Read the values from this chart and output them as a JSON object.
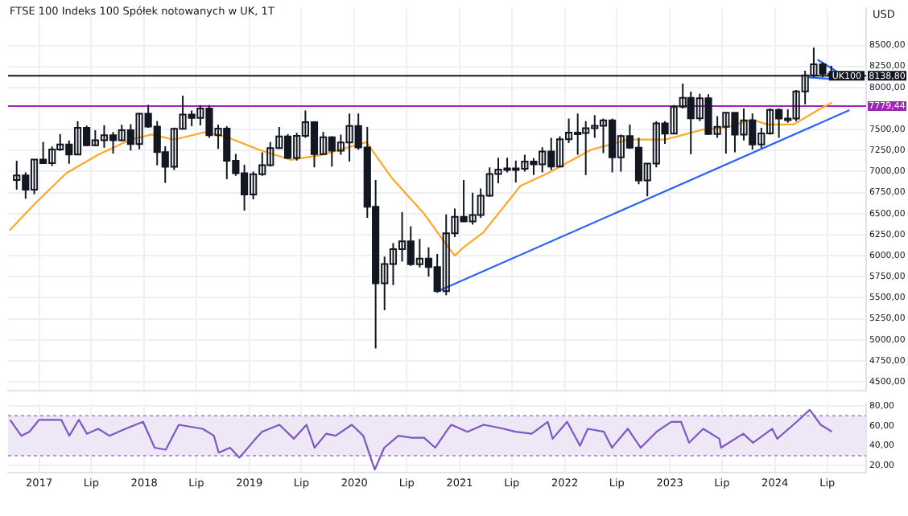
{
  "chart_data": [
    {
      "type": "candlestick",
      "title": "FTSE 100 Indeks 100 Spółek notowanych w UK, 1T",
      "ylabel": "USD",
      "color": "#131722",
      "x": [
        "2016-10-15",
        "2016-11-15",
        "2016-12-15",
        "2017-01-15",
        "2017-02-15",
        "2017-03-15",
        "2017-04-15",
        "2017-05-15",
        "2017-06-15",
        "2017-07-15",
        "2017-08-15",
        "2017-09-15",
        "2017-10-15",
        "2017-11-15",
        "2017-12-15",
        "2018-01-15",
        "2018-02-15",
        "2018-03-15",
        "2018-04-15",
        "2018-05-15",
        "2018-06-15",
        "2018-07-15",
        "2018-08-15",
        "2018-09-15",
        "2018-10-15",
        "2018-11-15",
        "2018-12-15",
        "2019-01-15",
        "2019-02-15",
        "2019-03-15",
        "2019-04-15",
        "2019-05-15",
        "2019-06-15",
        "2019-07-15",
        "2019-08-15",
        "2019-09-15",
        "2019-10-15",
        "2019-11-15",
        "2019-12-15",
        "2020-01-15",
        "2020-02-15",
        "2020-03-15",
        "2020-04-15",
        "2020-05-15",
        "2020-06-15",
        "2020-07-15",
        "2020-08-15",
        "2020-09-15",
        "2020-10-15",
        "2020-11-15",
        "2020-12-15",
        "2021-01-15",
        "2021-02-15",
        "2021-03-15",
        "2021-04-15",
        "2021-05-15",
        "2021-06-15",
        "2021-07-15",
        "2021-08-15",
        "2021-09-15",
        "2021-10-15",
        "2021-11-15",
        "2021-12-15",
        "2022-01-15",
        "2022-02-15",
        "2022-03-15",
        "2022-04-15",
        "2022-05-15",
        "2022-06-15",
        "2022-07-15",
        "2022-08-15",
        "2022-09-15",
        "2022-10-15",
        "2022-11-15",
        "2022-12-15",
        "2023-01-15",
        "2023-02-15",
        "2023-03-15",
        "2023-04-15",
        "2023-05-15",
        "2023-06-15",
        "2023-07-15",
        "2023-08-15",
        "2023-09-15",
        "2023-10-15",
        "2023-11-15",
        "2023-12-15",
        "2024-01-15",
        "2024-02-15",
        "2024-03-15",
        "2024-04-15",
        "2024-05-15",
        "2024-06-15",
        "2024-07-15"
      ],
      "ohlc": [
        [
          6899,
          7129,
          6785,
          6954
        ],
        [
          6954,
          6990,
          6676,
          6784
        ],
        [
          6784,
          7142,
          6730,
          7142
        ],
        [
          7142,
          7354,
          7090,
          7099
        ],
        [
          7099,
          7299,
          7067,
          7263
        ],
        [
          7263,
          7447,
          7245,
          7323
        ],
        [
          7323,
          7369,
          7093,
          7204
        ],
        [
          7204,
          7599,
          7200,
          7520
        ],
        [
          7520,
          7548,
          7302,
          7313
        ],
        [
          7313,
          7491,
          7304,
          7372
        ],
        [
          7372,
          7551,
          7285,
          7431
        ],
        [
          7431,
          7470,
          7215,
          7373
        ],
        [
          7373,
          7556,
          7361,
          7493
        ],
        [
          7493,
          7563,
          7250,
          7327
        ],
        [
          7327,
          7697,
          7265,
          7688
        ],
        [
          7688,
          7792,
          7520,
          7534
        ],
        [
          7534,
          7600,
          7074,
          7232
        ],
        [
          7232,
          7300,
          6867,
          7057
        ],
        [
          7057,
          7523,
          7020,
          7509
        ],
        [
          7509,
          7903,
          7500,
          7678
        ],
        [
          7678,
          7727,
          7540,
          7637
        ],
        [
          7637,
          7790,
          7550,
          7749
        ],
        [
          7749,
          7791,
          7400,
          7432
        ],
        [
          7432,
          7560,
          7270,
          7510
        ],
        [
          7510,
          7540,
          6910,
          7128
        ],
        [
          7128,
          7210,
          6950,
          6980
        ],
        [
          6980,
          7080,
          6536,
          6728
        ],
        [
          6728,
          7000,
          6670,
          6969
        ],
        [
          6969,
          7230,
          6950,
          7075
        ],
        [
          7075,
          7350,
          7060,
          7279
        ],
        [
          7279,
          7530,
          7270,
          7418
        ],
        [
          7418,
          7445,
          7150,
          7162
        ],
        [
          7162,
          7460,
          7130,
          7426
        ],
        [
          7426,
          7727,
          7400,
          7587
        ],
        [
          7587,
          7600,
          7050,
          7207
        ],
        [
          7207,
          7470,
          7200,
          7408
        ],
        [
          7408,
          7420,
          7060,
          7248
        ],
        [
          7248,
          7440,
          7200,
          7347
        ],
        [
          7347,
          7690,
          7120,
          7542
        ],
        [
          7542,
          7690,
          7260,
          7286
        ],
        [
          7286,
          7530,
          6450,
          6581
        ],
        [
          6581,
          6900,
          4898,
          5672
        ],
        [
          5672,
          5990,
          5350,
          5901
        ],
        [
          5901,
          6150,
          5650,
          6077
        ],
        [
          6077,
          6520,
          5930,
          6170
        ],
        [
          6170,
          6350,
          5880,
          5898
        ],
        [
          5898,
          6200,
          5860,
          5964
        ],
        [
          5964,
          6100,
          5750,
          5866
        ],
        [
          5866,
          6020,
          5560,
          5577
        ],
        [
          5577,
          6490,
          5530,
          6266
        ],
        [
          6266,
          6560,
          6220,
          6461
        ],
        [
          6461,
          6900,
          6400,
          6407
        ],
        [
          6407,
          6750,
          6370,
          6483
        ],
        [
          6483,
          6800,
          6450,
          6714
        ],
        [
          6714,
          7050,
          6700,
          6970
        ],
        [
          6970,
          7165,
          6860,
          7023
        ],
        [
          7023,
          7165,
          6990,
          7037
        ],
        [
          7037,
          7130,
          6870,
          7032
        ],
        [
          7032,
          7200,
          7000,
          7120
        ],
        [
          7120,
          7160,
          6960,
          7086
        ],
        [
          7086,
          7290,
          6990,
          7238
        ],
        [
          7238,
          7400,
          7020,
          7059
        ],
        [
          7059,
          7420,
          7050,
          7385
        ],
        [
          7385,
          7630,
          7340,
          7464
        ],
        [
          7464,
          7690,
          7200,
          7458
        ],
        [
          7458,
          7600,
          6960,
          7516
        ],
        [
          7516,
          7670,
          7400,
          7544
        ],
        [
          7544,
          7630,
          7220,
          7608
        ],
        [
          7608,
          7630,
          6990,
          7169
        ],
        [
          7169,
          7440,
          7000,
          7423
        ],
        [
          7423,
          7560,
          7270,
          7284
        ],
        [
          7284,
          7400,
          6850,
          6894
        ],
        [
          6894,
          7100,
          6707,
          7095
        ],
        [
          7095,
          7600,
          7050,
          7573
        ],
        [
          7573,
          7600,
          7330,
          7452
        ],
        [
          7452,
          7790,
          7450,
          7772
        ],
        [
          7772,
          8047,
          7750,
          7876
        ],
        [
          7876,
          7950,
          7206,
          7632
        ],
        [
          7632,
          7925,
          7600,
          7871
        ],
        [
          7871,
          7920,
          7440,
          7446
        ],
        [
          7446,
          7660,
          7400,
          7532
        ],
        [
          7532,
          7700,
          7215,
          7699
        ],
        [
          7699,
          7700,
          7230,
          7439
        ],
        [
          7439,
          7750,
          7370,
          7608
        ],
        [
          7608,
          7690,
          7260,
          7322
        ],
        [
          7322,
          7520,
          7280,
          7454
        ],
        [
          7454,
          7750,
          7440,
          7733
        ],
        [
          7733,
          7750,
          7400,
          7631
        ],
        [
          7631,
          7740,
          7580,
          7630
        ],
        [
          7630,
          7970,
          7600,
          7953
        ],
        [
          7953,
          8200,
          7800,
          8144
        ],
        [
          8144,
          8474,
          8120,
          8275
        ],
        [
          8275,
          8300,
          8120,
          8164
        ],
        [
          8164,
          8260,
          8110,
          8138.8
        ]
      ],
      "series": [
        {
          "type": "line",
          "color": "#ffa726",
          "x": [
            "2016-09-20",
            "2016-12-15",
            "2017-04-05",
            "2017-07-25",
            "2017-11-14",
            "2018-01-26",
            "2018-04-14",
            "2018-08-03",
            "2018-10-15",
            "2019-02-03",
            "2019-05-25",
            "2019-09-13",
            "2020-02-12",
            "2020-05-11",
            "2020-08-30",
            "2020-11-16",
            "2020-12-15",
            "2021-01-11",
            "2021-03-25",
            "2021-07-31",
            "2021-11-03",
            "2022-04-03",
            "2022-08-08",
            "2022-12-15",
            "2023-04-27",
            "2023-07-25",
            "2023-10-12",
            "2023-12-06",
            "2024-03-06",
            "2024-06-08",
            "2024-07-17"
          ],
          "values": [
            6300,
            6610,
            6980,
            7200,
            7380,
            7440,
            7380,
            7470,
            7410,
            7260,
            7140,
            7200,
            7350,
            6920,
            6500,
            6130,
            6000,
            6090,
            6280,
            6830,
            6980,
            7260,
            7380,
            7380,
            7500,
            7530,
            7620,
            7560,
            7560,
            7750,
            7820
          ]
        },
        {
          "type": "line",
          "color": "#2962ff",
          "x": [
            "2020-10-19",
            "2024-09-16"
          ],
          "values": [
            5580,
            7730
          ]
        },
        {
          "type": "line",
          "color": "#2962ff",
          "x": [
            "2024-05-28",
            "2024-08-03"
          ],
          "values": [
            8330,
            8190
          ]
        },
        {
          "type": "line",
          "color": "#2962ff",
          "x": [
            "2024-04-27",
            "2024-07-25"
          ],
          "values": [
            8120,
            8100
          ]
        }
      ],
      "xlim": [
        "2016-09-15",
        "2024-11-13"
      ],
      "xticks": [
        {
          "value": "2017",
          "label": null
        },
        {
          "value": "2017-07",
          "label": null
        },
        {
          "value": "2018",
          "label": null
        },
        {
          "value": "2018-07",
          "label": null
        },
        {
          "value": "2019",
          "label": null
        },
        {
          "value": "2019-07",
          "label": null
        },
        {
          "value": "2020",
          "label": null
        },
        {
          "value": "2020-07",
          "label": null
        },
        {
          "value": "2021",
          "label": null
        },
        {
          "value": "2021-07",
          "label": null
        },
        {
          "value": "2022",
          "label": null
        },
        {
          "value": "2022-07",
          "label": null
        },
        {
          "value": "2023",
          "label": null
        },
        {
          "value": "2023-07",
          "label": null
        },
        {
          "value": "2024",
          "label": null
        },
        {
          "value": "2024-07",
          "label": null
        }
      ],
      "ylim": [
        4400,
        8940
      ],
      "yticks": [
        {
          "value": 4500,
          "label": "4500,00"
        },
        {
          "value": 4750,
          "label": "4750,00"
        },
        {
          "value": 5000,
          "label": "5000,00"
        },
        {
          "value": 5250,
          "label": "5250,00"
        },
        {
          "value": 5500,
          "label": "5500,00"
        },
        {
          "value": 5750,
          "label": "5750,00"
        },
        {
          "value": 6000,
          "label": "6000,00"
        },
        {
          "value": 6250,
          "label": "6250,00"
        },
        {
          "value": 6500,
          "label": "6500,00"
        },
        {
          "value": 6750,
          "label": "6750,00"
        },
        {
          "value": 7000,
          "label": "7000,00"
        },
        {
          "value": 7250,
          "label": "7250,00"
        },
        {
          "value": 7500,
          "label": "7500,00"
        },
        {
          "value": 7750,
          "label": null
        },
        {
          "value": 8000,
          "label": "8000,00"
        },
        {
          "value": 8250,
          "label": "8250,00"
        },
        {
          "value": 8500,
          "label": "8500,00"
        }
      ],
      "ref_lines": [
        {
          "axis": "y",
          "value": 7779.44,
          "label": "7779,44",
          "color": "#9c27b0"
        },
        {
          "axis": "y",
          "value": 8138.8,
          "label": "8138,80",
          "color": "#131722"
        }
      ],
      "annotations": [
        {
          "text": "UK100",
          "y": 8138.8
        }
      ],
      "grid": true,
      "tick_labels": "y"
    },
    {
      "type": "line",
      "x": [
        "2016-09-22",
        "2016-10-31",
        "2016-11-28",
        "2017-01-01",
        "2017-02-20",
        "2017-03-19",
        "2017-04-16",
        "2017-05-19",
        "2017-06-16",
        "2017-07-25",
        "2017-09-02",
        "2017-10-28",
        "2017-12-28",
        "2018-02-06",
        "2018-03-17",
        "2018-05-01",
        "2018-07-23",
        "2018-08-31",
        "2018-09-17",
        "2018-10-26",
        "2018-11-28",
        "2019-01-17",
        "2019-02-14",
        "2019-04-16",
        "2019-06-05",
        "2019-07-19",
        "2019-08-16",
        "2019-09-25",
        "2019-10-28",
        "2019-12-23",
        "2020-02-01",
        "2020-03-12",
        "2020-04-14",
        "2020-06-02",
        "2020-07-17",
        "2020-08-30",
        "2020-10-08",
        "2020-11-22",
        "2020-12-03",
        "2021-01-28",
        "2021-03-25",
        "2021-05-19",
        "2021-07-14",
        "2021-09-08",
        "2021-11-03",
        "2021-11-20",
        "2022-01-09",
        "2022-02-23",
        "2022-03-22",
        "2022-05-17",
        "2022-06-14",
        "2022-08-08",
        "2022-09-22",
        "2022-11-16",
        "2023-01-06",
        "2023-02-09",
        "2023-03-09",
        "2023-04-27",
        "2023-06-22",
        "2023-06-28",
        "2023-09-13",
        "2023-10-17",
        "2023-12-23",
        "2024-01-09",
        "2024-03-17",
        "2024-05-01",
        "2024-06-08",
        "2024-07-17"
      ],
      "series": [
        {
          "color": "#7e57c2",
          "values": [
            66,
            50,
            54,
            66,
            66,
            66,
            50,
            66,
            52,
            57,
            50,
            57,
            64,
            38,
            36,
            61,
            57,
            50,
            33,
            38,
            28,
            45,
            54,
            61,
            47,
            61,
            38,
            52,
            50,
            61,
            50,
            16,
            38,
            50,
            48,
            48,
            38,
            57,
            61,
            54,
            61,
            58,
            54,
            52,
            64,
            47,
            64,
            40,
            57,
            54,
            38,
            57,
            38,
            54,
            64,
            64,
            43,
            57,
            47,
            38,
            52,
            43,
            57,
            47,
            64,
            76,
            61,
            54
          ]
        }
      ],
      "xlim": [
        "2016-09-15",
        "2024-11-13"
      ],
      "xticks": [
        {
          "value": "2017",
          "label": "2017"
        },
        {
          "value": "2017-07",
          "label": "Lip"
        },
        {
          "value": "2018",
          "label": "2018"
        },
        {
          "value": "2018-07",
          "label": "Lip"
        },
        {
          "value": "2019",
          "label": "2019"
        },
        {
          "value": "2019-07",
          "label": "Lip"
        },
        {
          "value": "2020",
          "label": "2020"
        },
        {
          "value": "2020-07",
          "label": "Lip"
        },
        {
          "value": "2021",
          "label": "2021"
        },
        {
          "value": "2021-07",
          "label": "Lip"
        },
        {
          "value": "2022",
          "label": "2022"
        },
        {
          "value": "2022-07",
          "label": "Lip"
        },
        {
          "value": "2023",
          "label": "2023"
        },
        {
          "value": "2023-07",
          "label": "Lip"
        },
        {
          "value": "2024",
          "label": "2024"
        },
        {
          "value": "2024-07",
          "label": "Lip"
        }
      ],
      "ylim": [
        13,
        82
      ],
      "yticks": [
        {
          "value": 20,
          "label": "20,00"
        },
        {
          "value": 40,
          "label": "40,00"
        },
        {
          "value": 60,
          "label": "60,00"
        },
        {
          "value": 80,
          "label": "80,00"
        }
      ],
      "bands": [
        {
          "axis": "y",
          "from": 30,
          "to": 70,
          "color": "#ede7f6"
        }
      ],
      "ref_lines": [
        {
          "axis": "y",
          "value": 70,
          "color": "#a99bd0",
          "line_style": "dotted"
        },
        {
          "axis": "y",
          "value": 30,
          "color": "#a99bd0",
          "line_style": "dotted"
        }
      ],
      "grid": true
    }
  ]
}
